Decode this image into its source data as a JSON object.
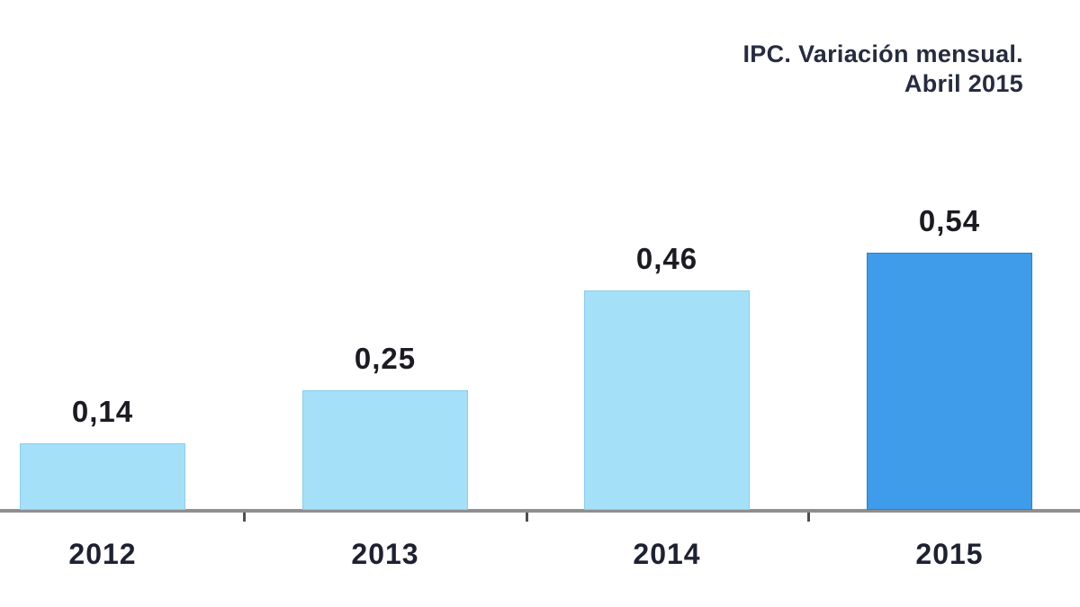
{
  "title": {
    "line1": "IPC. Variación mensual.",
    "line2": "Abril 2015"
  },
  "chart_data": {
    "type": "bar",
    "title": "IPC. Variación mensual. Abril 2015",
    "categories": [
      "2012",
      "2013",
      "2014",
      "2015"
    ],
    "values": [
      0.14,
      0.25,
      0.46,
      0.54
    ],
    "value_labels": [
      "0,14",
      "0,25",
      "0,46",
      "0,54"
    ],
    "xlabel": "",
    "ylabel": "",
    "ylim": [
      0,
      0.6
    ],
    "grid": false,
    "legend_position": "none",
    "y_axis_visible": false,
    "colors": {
      "bar_fill": [
        "#A5E0F9",
        "#A5E0F9",
        "#A5E0F9",
        "#3E9CEA"
      ],
      "bar_border": [
        "#8BCDEE",
        "#8BCDEE",
        "#8BCDEE",
        "#2E7FC8"
      ],
      "axis_line": "#8F8F8F",
      "tick": "#4F4F4F",
      "value_text": "#1B1B22",
      "category_text": "#1E2130",
      "title_text": "#262C40"
    }
  }
}
